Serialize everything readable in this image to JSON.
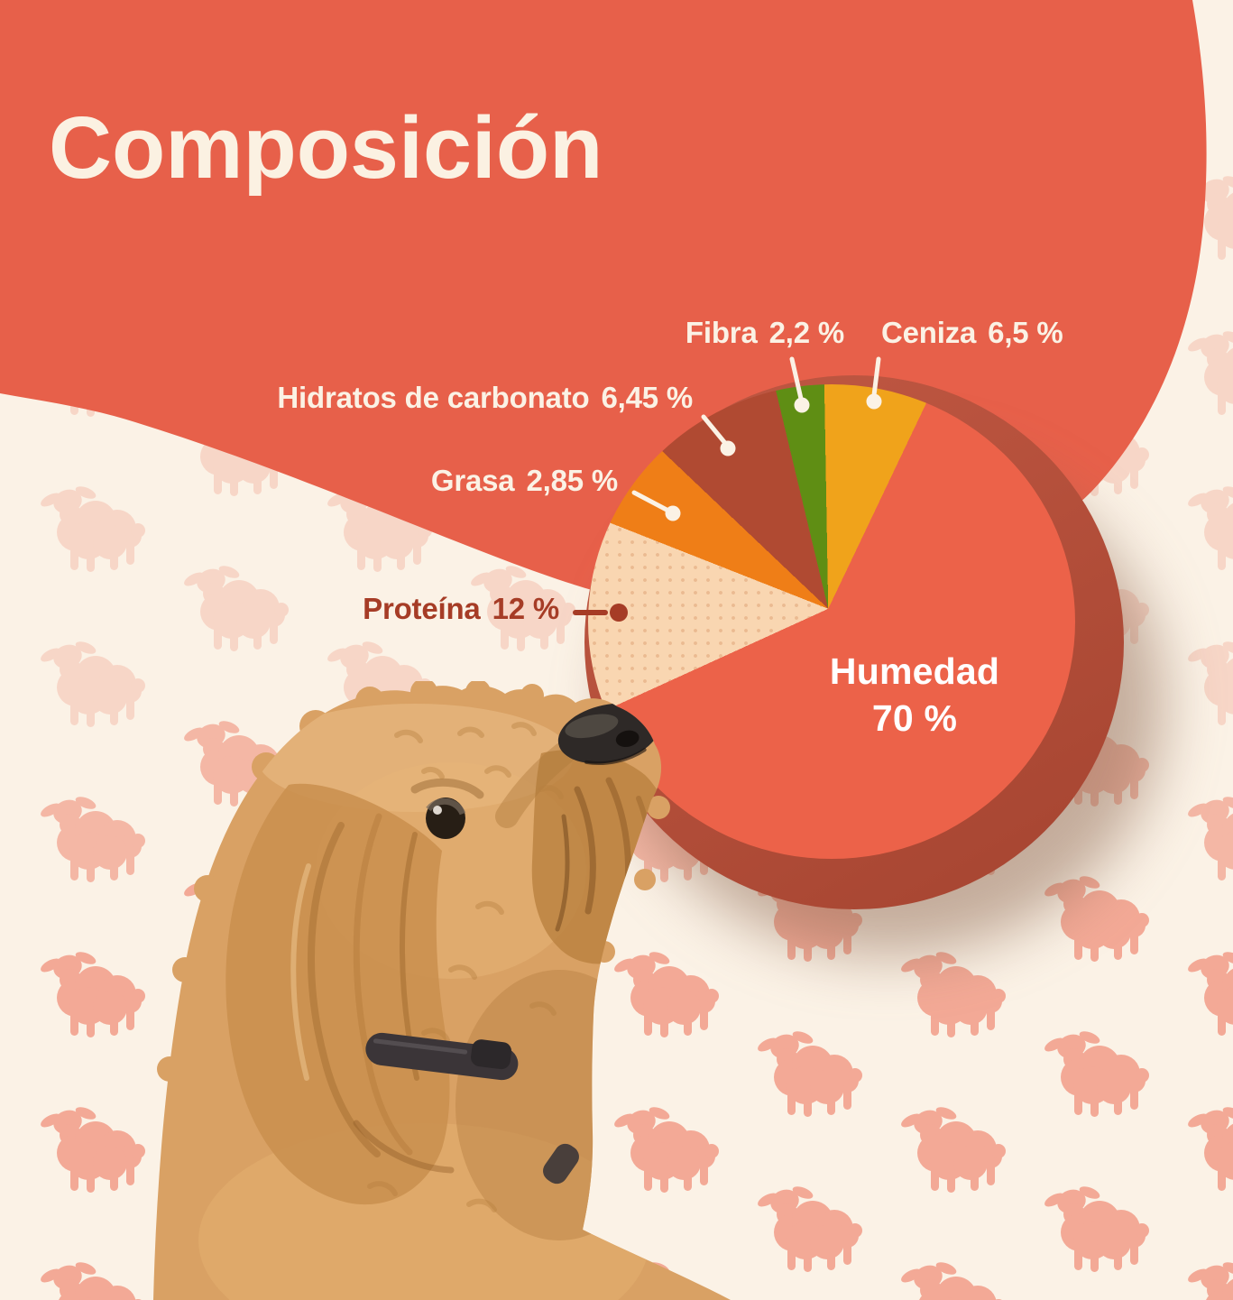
{
  "title": "Composición",
  "chart_data": {
    "type": "pie",
    "title": "Composición",
    "unit": "%",
    "segments": [
      {
        "label": "Humedad",
        "value": 70,
        "value_text": "70 %",
        "color": "#EC6249"
      },
      {
        "label": "Proteína",
        "value": 12,
        "value_text": "12 %",
        "color": "#F9D6B1"
      },
      {
        "label": "Grasa",
        "value": 2.85,
        "value_text": "2,85 %",
        "color": "#EF7E17"
      },
      {
        "label": "Hidratos de carbonato",
        "value": 6.45,
        "value_text": "6,45 %",
        "color": "#B04A32"
      },
      {
        "label": "Fibra",
        "value": 2.2,
        "value_text": "2,2 %",
        "color": "#5F8E14"
      },
      {
        "label": "Ceniza",
        "value": 6.5,
        "value_text": "6,5 %",
        "color": "#F0A31B"
      }
    ],
    "legend_position": "callout-labels",
    "style_hints": {
      "projection": "flat-disc-with-3d-offset-side",
      "conic_center": "49.3% 47.3%",
      "drawn_segments": [
        {
          "label": "Ceniza",
          "from": -1,
          "to": 25.5,
          "color": "#F0A31B"
        },
        {
          "label": "Humedad",
          "from": 25.5,
          "to": 245.5,
          "color": "#EC6249"
        },
        {
          "label": "Proteína",
          "from": 245.5,
          "to": 291.5,
          "color": "#F9D6B1"
        },
        {
          "label": "Grasa",
          "from": 291.5,
          "to": 313.5,
          "color": "#EF7E17"
        },
        {
          "label": "Hidratos de carbonato",
          "from": 313.5,
          "to": 346.5,
          "color": "#B04A32"
        },
        {
          "label": "Fibra",
          "from": 346.5,
          "to": 359,
          "color": "#5F8E14"
        }
      ]
    }
  },
  "callouts": {
    "fibra": {
      "label": "Fibra",
      "value": "2,2 %"
    },
    "ceniza": {
      "label": "Ceniza",
      "value": "6,5 %"
    },
    "hidratos": {
      "label": "Hidratos de carbonato",
      "value": "6,45 %"
    },
    "grasa": {
      "label": "Grasa",
      "value": "2,85 %"
    },
    "proteina": {
      "label": "Proteína",
      "value": "12 %"
    },
    "humedad": {
      "label": "Humedad",
      "value": "70 %"
    }
  },
  "colors": {
    "background": "#FBF2E6",
    "blob": "#E7604A",
    "title_text": "#FBF1E2",
    "label_light": "#FBF2E5",
    "label_dark": "#A63C26",
    "humedad_text": "#FFFFFF",
    "pie_side": "#B5503B",
    "sheep": "#F3A996"
  },
  "decor": {
    "pattern_icon": "sheep-icon",
    "photo": "dog-photo"
  }
}
